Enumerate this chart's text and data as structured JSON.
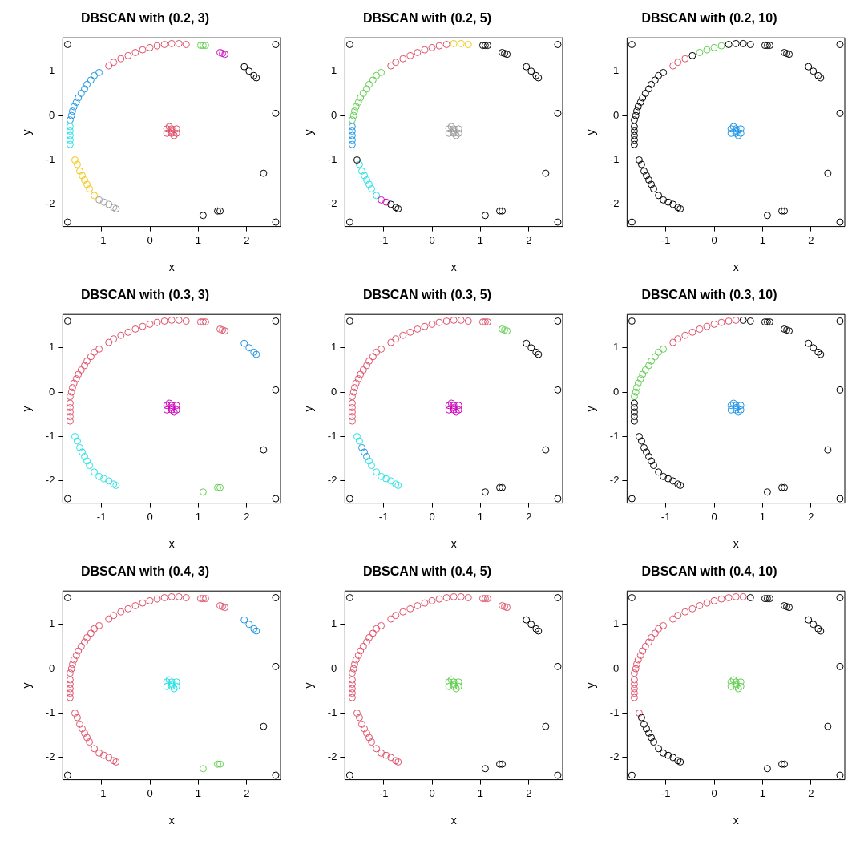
{
  "chart_data": [
    {
      "type": "scatter",
      "title": "DBSCAN with (0.2, 3)",
      "xlabel": "x",
      "ylabel": "y",
      "xlim": [
        -1.8,
        2.7
      ],
      "ylim": [
        -2.5,
        1.75
      ],
      "xticks": [
        -1,
        0,
        1,
        2
      ],
      "yticks": [
        -2,
        -1,
        0,
        1
      ],
      "marker": "circle",
      "series": [
        {
          "color": "#000000",
          "x": [
            1.95,
            2.05,
            2.15,
            2.2,
            -1.7,
            2.6,
            -1.7,
            2.6,
            2.6,
            2.35,
            1.1,
            1.4,
            1.45
          ],
          "values": [
            1.1,
            1.0,
            0.9,
            0.85,
            1.6,
            1.6,
            -2.4,
            -2.4,
            0.05,
            -1.3,
            -2.25,
            -2.15,
            -2.15
          ]
        },
        {
          "color": "#df536b",
          "x": [
            -0.85,
            -0.75,
            -0.6,
            -0.45,
            -0.3,
            -0.15,
            0.0,
            0.15,
            0.3,
            0.45,
            0.6,
            0.75,
            0.35,
            0.45,
            0.55,
            0.35,
            0.45,
            0.55,
            0.4,
            0.5,
            0.45
          ],
          "values": [
            1.12,
            1.2,
            1.28,
            1.35,
            1.42,
            1.48,
            1.53,
            1.57,
            1.6,
            1.62,
            1.62,
            1.6,
            -0.3,
            -0.3,
            -0.3,
            -0.4,
            -0.4,
            -0.4,
            -0.25,
            -0.45,
            -0.35
          ]
        },
        {
          "color": "#61d04f",
          "x": [
            1.05,
            1.1,
            1.15
          ],
          "values": [
            1.58,
            1.58,
            1.58
          ]
        },
        {
          "color": "#cd0bbc",
          "x": [
            1.45,
            1.5,
            1.55
          ],
          "values": [
            1.42,
            1.4,
            1.38
          ]
        },
        {
          "color": "#2297e6",
          "x": [
            -1.65,
            -1.62,
            -1.6,
            -1.57,
            -1.52,
            -1.48,
            -1.42,
            -1.35,
            -1.3,
            -1.22,
            -1.15,
            -1.05
          ],
          "values": [
            -0.1,
            0.0,
            0.1,
            0.2,
            0.3,
            0.4,
            0.5,
            0.6,
            0.7,
            0.8,
            0.9,
            0.97
          ]
        },
        {
          "color": "#28e2e5",
          "x": [
            -1.65,
            -1.65,
            -1.65,
            -1.65,
            -1.65
          ],
          "values": [
            -0.65,
            -0.55,
            -0.45,
            -0.35,
            -0.25
          ]
        },
        {
          "color": "#f5c710",
          "x": [
            -1.15,
            -1.25,
            -1.3,
            -1.35,
            -1.4,
            -1.45,
            -1.5,
            -1.55
          ],
          "values": [
            -1.8,
            -1.65,
            -1.55,
            -1.45,
            -1.35,
            -1.25,
            -1.1,
            -1.0
          ]
        },
        {
          "color": "#9e9e9e",
          "x": [
            -0.7,
            -0.75,
            -0.85,
            -0.95,
            -1.05
          ],
          "values": [
            -2.1,
            -2.07,
            -2.0,
            -1.95,
            -1.9
          ]
        }
      ]
    },
    {
      "type": "scatter",
      "title": "DBSCAN with (0.2, 5)",
      "xlabel": "x",
      "ylabel": "y",
      "xlim": [
        -1.8,
        2.7
      ],
      "ylim": [
        -2.5,
        1.75
      ],
      "xticks": [
        -1,
        0,
        1,
        2
      ],
      "yticks": [
        -2,
        -1,
        0,
        1
      ],
      "marker": "circle",
      "series": [
        {
          "color": "#000000",
          "x": [
            -0.7,
            -0.75,
            -0.85,
            -1.55,
            1.05,
            1.1,
            1.15,
            1.45,
            1.5,
            1.55,
            1.95,
            2.05,
            2.15,
            2.2,
            -1.7,
            2.6,
            -1.7,
            2.6,
            2.6,
            2.35,
            1.1,
            1.4,
            1.45
          ],
          "values": [
            -2.1,
            -2.07,
            -2.0,
            -1.0,
            1.58,
            1.58,
            1.58,
            1.42,
            1.4,
            1.38,
            1.1,
            1.0,
            0.9,
            0.85,
            1.6,
            1.6,
            -2.4,
            -2.4,
            0.05,
            -1.3,
            -2.25,
            -2.15,
            -2.15
          ]
        },
        {
          "color": "#cd0bbc",
          "x": [
            -0.95,
            -1.05
          ],
          "values": [
            -1.95,
            -1.9
          ]
        },
        {
          "color": "#28e2e5",
          "x": [
            -1.15,
            -1.25,
            -1.3,
            -1.35,
            -1.4,
            -1.45,
            -1.5
          ],
          "values": [
            -1.8,
            -1.65,
            -1.55,
            -1.45,
            -1.35,
            -1.25,
            -1.1
          ]
        },
        {
          "color": "#2297e6",
          "x": [
            -1.65,
            -1.65,
            -1.65,
            -1.65,
            -1.65
          ],
          "values": [
            -0.65,
            -0.55,
            -0.45,
            -0.35,
            -0.25
          ]
        },
        {
          "color": "#61d04f",
          "x": [
            -1.65,
            -1.62,
            -1.6,
            -1.57,
            -1.52,
            -1.48,
            -1.42,
            -1.35,
            -1.3,
            -1.22,
            -1.15,
            -1.05
          ],
          "values": [
            -0.1,
            0.0,
            0.1,
            0.2,
            0.3,
            0.4,
            0.5,
            0.6,
            0.7,
            0.8,
            0.9,
            0.97
          ]
        },
        {
          "color": "#df536b",
          "x": [
            -0.85,
            -0.75,
            -0.6,
            -0.45,
            -0.3,
            -0.15,
            0.0,
            0.15,
            0.3
          ],
          "values": [
            1.12,
            1.2,
            1.28,
            1.35,
            1.42,
            1.48,
            1.53,
            1.57,
            1.6
          ]
        },
        {
          "color": "#f5c710",
          "x": [
            0.45,
            0.6,
            0.75
          ],
          "values": [
            1.62,
            1.62,
            1.6
          ]
        },
        {
          "color": "#9e9e9e",
          "x": [
            0.35,
            0.45,
            0.55,
            0.35,
            0.45,
            0.55,
            0.4,
            0.5,
            0.45
          ],
          "values": [
            -0.3,
            -0.3,
            -0.3,
            -0.4,
            -0.4,
            -0.4,
            -0.25,
            -0.45,
            -0.35
          ]
        }
      ]
    },
    {
      "type": "scatter",
      "title": "DBSCAN with (0.2, 10)",
      "xlabel": "x",
      "ylabel": "y",
      "xlim": [
        -1.8,
        2.7
      ],
      "ylim": [
        -2.5,
        1.75
      ],
      "xticks": [
        -1,
        0,
        1,
        2
      ],
      "yticks": [
        -2,
        -1,
        0,
        1
      ],
      "marker": "circle",
      "series": [
        {
          "color": "#000000",
          "x": [
            -0.7,
            -0.75,
            -0.85,
            -0.95,
            -1.05,
            -1.15,
            -1.25,
            -1.3,
            -1.35,
            -1.4,
            -1.45,
            -1.5,
            -1.55,
            -1.65,
            -1.65,
            -1.65,
            -1.65,
            -1.65,
            -1.65,
            -1.62,
            -1.6,
            -1.57,
            -1.52,
            -1.48,
            -1.42,
            -1.35,
            -1.3,
            -1.22,
            -1.15,
            -1.05,
            -0.45,
            0.3,
            0.45,
            0.6,
            0.75,
            1.05,
            1.1,
            1.15,
            1.45,
            1.5,
            1.55,
            1.95,
            2.05,
            2.15,
            2.2,
            -1.7,
            2.6,
            -1.7,
            2.6,
            2.6,
            2.35,
            1.1,
            1.4,
            1.45
          ],
          "values": [
            -2.1,
            -2.07,
            -2.0,
            -1.95,
            -1.9,
            -1.8,
            -1.65,
            -1.55,
            -1.45,
            -1.35,
            -1.25,
            -1.1,
            -1.0,
            -0.65,
            -0.55,
            -0.45,
            -0.35,
            -0.25,
            -0.1,
            0.0,
            0.1,
            0.2,
            0.3,
            0.4,
            0.5,
            0.6,
            0.7,
            0.8,
            0.9,
            0.97,
            1.35,
            1.6,
            1.62,
            1.62,
            1.6,
            1.58,
            1.58,
            1.58,
            1.42,
            1.4,
            1.38,
            1.1,
            1.0,
            0.9,
            0.85,
            1.6,
            1.6,
            -2.4,
            -2.4,
            0.05,
            -1.3,
            -2.25,
            -2.15,
            -2.15
          ]
        },
        {
          "color": "#df536b",
          "x": [
            -0.85,
            -0.75,
            -0.6
          ],
          "values": [
            1.12,
            1.2,
            1.28
          ]
        },
        {
          "color": "#61d04f",
          "x": [
            -0.3,
            -0.15,
            0.0,
            0.15
          ],
          "values": [
            1.42,
            1.48,
            1.53,
            1.57
          ]
        },
        {
          "color": "#2297e6",
          "x": [
            0.35,
            0.45,
            0.55,
            0.35,
            0.45,
            0.55,
            0.4,
            0.5,
            0.45
          ],
          "values": [
            -0.3,
            -0.3,
            -0.3,
            -0.4,
            -0.4,
            -0.4,
            -0.25,
            -0.45,
            -0.35
          ]
        }
      ]
    },
    {
      "type": "scatter",
      "title": "DBSCAN with (0.3, 3)",
      "xlabel": "x",
      "ylabel": "y",
      "xlim": [
        -1.8,
        2.7
      ],
      "ylim": [
        -2.5,
        1.75
      ],
      "xticks": [
        -1,
        0,
        1,
        2
      ],
      "yticks": [
        -2,
        -1,
        0,
        1
      ],
      "marker": "circle",
      "series": [
        {
          "color": "#000000",
          "x": [
            -1.7,
            2.6,
            -1.7,
            2.6,
            2.6,
            2.35
          ],
          "values": [
            1.6,
            1.6,
            -2.4,
            -2.4,
            0.05,
            -1.3
          ]
        },
        {
          "color": "#df536b",
          "x": [
            -1.65,
            -1.65,
            -1.65,
            -1.65,
            -1.65,
            -1.65,
            -1.62,
            -1.6,
            -1.57,
            -1.52,
            -1.48,
            -1.42,
            -1.35,
            -1.3,
            -1.22,
            -1.15,
            -1.05,
            -0.85,
            -0.75,
            -0.6,
            -0.45,
            -0.3,
            -0.15,
            0.0,
            0.15,
            0.3,
            0.45,
            0.6,
            0.75,
            1.05,
            1.1,
            1.15,
            1.45,
            1.5,
            1.55
          ],
          "values": [
            -0.65,
            -0.55,
            -0.45,
            -0.35,
            -0.25,
            -0.1,
            0.0,
            0.1,
            0.2,
            0.3,
            0.4,
            0.5,
            0.6,
            0.7,
            0.8,
            0.9,
            0.97,
            1.12,
            1.2,
            1.28,
            1.35,
            1.42,
            1.48,
            1.53,
            1.57,
            1.6,
            1.62,
            1.62,
            1.6,
            1.58,
            1.58,
            1.58,
            1.42,
            1.4,
            1.38
          ]
        },
        {
          "color": "#2297e6",
          "x": [
            1.95,
            2.05,
            2.15,
            2.2
          ],
          "values": [
            1.1,
            1.0,
            0.9,
            0.85
          ]
        },
        {
          "color": "#28e2e5",
          "x": [
            -0.7,
            -0.75,
            -0.85,
            -0.95,
            -1.05,
            -1.15,
            -1.25,
            -1.3,
            -1.35,
            -1.4,
            -1.45,
            -1.5,
            -1.55
          ],
          "values": [
            -2.1,
            -2.07,
            -2.0,
            -1.95,
            -1.9,
            -1.8,
            -1.65,
            -1.55,
            -1.45,
            -1.35,
            -1.25,
            -1.1,
            -1.0
          ]
        },
        {
          "color": "#61d04f",
          "x": [
            1.1,
            1.4,
            1.45
          ],
          "values": [
            -2.25,
            -2.15,
            -2.15
          ]
        },
        {
          "color": "#cd0bbc",
          "x": [
            0.35,
            0.45,
            0.55,
            0.35,
            0.45,
            0.55,
            0.4,
            0.5,
            0.45
          ],
          "values": [
            -0.3,
            -0.3,
            -0.3,
            -0.4,
            -0.4,
            -0.4,
            -0.25,
            -0.45,
            -0.35
          ]
        }
      ]
    },
    {
      "type": "scatter",
      "title": "DBSCAN with (0.3, 5)",
      "xlabel": "x",
      "ylabel": "y",
      "xlim": [
        -1.8,
        2.7
      ],
      "ylim": [
        -2.5,
        1.75
      ],
      "xticks": [
        -1,
        0,
        1,
        2
      ],
      "yticks": [
        -2,
        -1,
        0,
        1
      ],
      "marker": "circle",
      "series": [
        {
          "color": "#000000",
          "x": [
            1.95,
            2.05,
            2.15,
            2.2,
            -1.7,
            2.6,
            -1.7,
            2.6,
            2.6,
            2.35,
            1.1,
            1.4,
            1.45
          ],
          "values": [
            1.1,
            1.0,
            0.9,
            0.85,
            1.6,
            1.6,
            -2.4,
            -2.4,
            0.05,
            -1.3,
            -2.25,
            -2.15,
            -2.15
          ]
        },
        {
          "color": "#df536b",
          "x": [
            -1.65,
            -1.65,
            -1.65,
            -1.65,
            -1.65,
            -1.65,
            -1.62,
            -1.6,
            -1.57,
            -1.52,
            -1.48,
            -1.42,
            -1.35,
            -1.3,
            -1.22,
            -1.15,
            -1.05,
            -0.85,
            -0.75,
            -0.6,
            -0.45,
            -0.3,
            -0.15,
            0.0,
            0.15,
            0.3,
            0.45,
            0.6,
            0.75,
            1.05,
            1.1,
            1.15
          ],
          "values": [
            -0.65,
            -0.55,
            -0.45,
            -0.35,
            -0.25,
            -0.1,
            0.0,
            0.1,
            0.2,
            0.3,
            0.4,
            0.5,
            0.6,
            0.7,
            0.8,
            0.9,
            0.97,
            1.12,
            1.2,
            1.28,
            1.35,
            1.42,
            1.48,
            1.53,
            1.57,
            1.6,
            1.62,
            1.62,
            1.6,
            1.58,
            1.58,
            1.58
          ]
        },
        {
          "color": "#61d04f",
          "x": [
            1.45,
            1.5,
            1.55
          ],
          "values": [
            1.42,
            1.4,
            1.38
          ]
        },
        {
          "color": "#28e2e5",
          "x": [
            -0.7,
            -0.75,
            -0.85,
            -0.95,
            -1.05,
            -1.15,
            -1.25,
            -1.3,
            -1.5,
            -1.55
          ],
          "values": [
            -2.1,
            -2.07,
            -2.0,
            -1.95,
            -1.9,
            -1.8,
            -1.65,
            -1.55,
            -1.1,
            -1.0
          ]
        },
        {
          "color": "#2297e6",
          "x": [
            -1.35,
            -1.4,
            -1.45
          ],
          "values": [
            -1.45,
            -1.35,
            -1.25
          ]
        },
        {
          "color": "#cd0bbc",
          "x": [
            0.35,
            0.45,
            0.55,
            0.35,
            0.45,
            0.55,
            0.4,
            0.5,
            0.45
          ],
          "values": [
            -0.3,
            -0.3,
            -0.3,
            -0.4,
            -0.4,
            -0.4,
            -0.25,
            -0.45,
            -0.35
          ]
        }
      ]
    },
    {
      "type": "scatter",
      "title": "DBSCAN with (0.3, 10)",
      "xlabel": "x",
      "ylabel": "y",
      "xlim": [
        -1.8,
        2.7
      ],
      "ylim": [
        -2.5,
        1.75
      ],
      "xticks": [
        -1,
        0,
        1,
        2
      ],
      "yticks": [
        -2,
        -1,
        0,
        1
      ],
      "marker": "circle",
      "series": [
        {
          "color": "#000000",
          "x": [
            -0.7,
            -0.75,
            -0.85,
            -0.95,
            -1.05,
            -1.15,
            -1.25,
            -1.3,
            -1.35,
            -1.4,
            -1.45,
            -1.5,
            -1.55,
            -1.65,
            -1.65,
            -1.65,
            -1.65,
            -1.65,
            0.6,
            0.75,
            1.05,
            1.1,
            1.15,
            1.45,
            1.5,
            1.55,
            1.95,
            2.05,
            2.15,
            2.2,
            -1.7,
            2.6,
            -1.7,
            2.6,
            2.6,
            2.35,
            1.1,
            1.4,
            1.45
          ],
          "values": [
            -2.1,
            -2.07,
            -2.0,
            -1.95,
            -1.9,
            -1.8,
            -1.65,
            -1.55,
            -1.45,
            -1.35,
            -1.25,
            -1.1,
            -1.0,
            -0.65,
            -0.55,
            -0.45,
            -0.35,
            -0.25,
            1.62,
            1.6,
            1.58,
            1.58,
            1.58,
            1.42,
            1.4,
            1.38,
            1.1,
            1.0,
            0.9,
            0.85,
            1.6,
            1.6,
            -2.4,
            -2.4,
            0.05,
            -1.3,
            -2.25,
            -2.15,
            -2.15
          ]
        },
        {
          "color": "#61d04f",
          "x": [
            -1.65,
            -1.62,
            -1.6,
            -1.57,
            -1.52,
            -1.48,
            -1.42,
            -1.35,
            -1.3,
            -1.22,
            -1.15,
            -1.05
          ],
          "values": [
            -0.1,
            0.0,
            0.1,
            0.2,
            0.3,
            0.4,
            0.5,
            0.6,
            0.7,
            0.8,
            0.9,
            0.97
          ]
        },
        {
          "color": "#df536b",
          "x": [
            -0.85,
            -0.75,
            -0.6,
            -0.45,
            -0.3,
            -0.15,
            0.0,
            0.15,
            0.3,
            0.45
          ],
          "values": [
            1.12,
            1.2,
            1.28,
            1.35,
            1.42,
            1.48,
            1.53,
            1.57,
            1.6,
            1.62
          ]
        },
        {
          "color": "#2297e6",
          "x": [
            0.35,
            0.45,
            0.55,
            0.35,
            0.45,
            0.55,
            0.4,
            0.5,
            0.45
          ],
          "values": [
            -0.3,
            -0.3,
            -0.3,
            -0.4,
            -0.4,
            -0.4,
            -0.25,
            -0.45,
            -0.35
          ]
        }
      ]
    },
    {
      "type": "scatter",
      "title": "DBSCAN with (0.4, 3)",
      "xlabel": "x",
      "ylabel": "y",
      "xlim": [
        -1.8,
        2.7
      ],
      "ylim": [
        -2.5,
        1.75
      ],
      "xticks": [
        -1,
        0,
        1,
        2
      ],
      "yticks": [
        -2,
        -1,
        0,
        1
      ],
      "marker": "circle",
      "series": [
        {
          "color": "#000000",
          "x": [
            -1.7,
            2.6,
            -1.7,
            2.6,
            2.6,
            2.35
          ],
          "values": [
            1.6,
            1.6,
            -2.4,
            -2.4,
            0.05,
            -1.3
          ]
        },
        {
          "color": "#df536b",
          "x": [
            -0.7,
            -0.75,
            -0.85,
            -0.95,
            -1.05,
            -1.15,
            -1.25,
            -1.3,
            -1.35,
            -1.4,
            -1.45,
            -1.5,
            -1.55,
            -1.65,
            -1.65,
            -1.65,
            -1.65,
            -1.65,
            -1.65,
            -1.62,
            -1.6,
            -1.57,
            -1.52,
            -1.48,
            -1.42,
            -1.35,
            -1.3,
            -1.22,
            -1.15,
            -1.05,
            -0.85,
            -0.75,
            -0.6,
            -0.45,
            -0.3,
            -0.15,
            0.0,
            0.15,
            0.3,
            0.45,
            0.6,
            0.75,
            1.05,
            1.1,
            1.15,
            1.45,
            1.5,
            1.55
          ],
          "values": [
            -2.1,
            -2.07,
            -2.0,
            -1.95,
            -1.9,
            -1.8,
            -1.65,
            -1.55,
            -1.45,
            -1.35,
            -1.25,
            -1.1,
            -1.0,
            -0.65,
            -0.55,
            -0.45,
            -0.35,
            -0.25,
            -0.1,
            0.0,
            0.1,
            0.2,
            0.3,
            0.4,
            0.5,
            0.6,
            0.7,
            0.8,
            0.9,
            0.97,
            1.12,
            1.2,
            1.28,
            1.35,
            1.42,
            1.48,
            1.53,
            1.57,
            1.6,
            1.62,
            1.62,
            1.6,
            1.58,
            1.58,
            1.58,
            1.42,
            1.4,
            1.38
          ]
        },
        {
          "color": "#2297e6",
          "x": [
            1.95,
            2.05,
            2.15,
            2.2
          ],
          "values": [
            1.1,
            1.0,
            0.9,
            0.85
          ]
        },
        {
          "color": "#61d04f",
          "x": [
            1.1,
            1.4,
            1.45
          ],
          "values": [
            -2.25,
            -2.15,
            -2.15
          ]
        },
        {
          "color": "#28e2e5",
          "x": [
            0.35,
            0.45,
            0.55,
            0.35,
            0.45,
            0.55,
            0.4,
            0.5,
            0.45
          ],
          "values": [
            -0.3,
            -0.3,
            -0.3,
            -0.4,
            -0.4,
            -0.4,
            -0.25,
            -0.45,
            -0.35
          ]
        }
      ]
    },
    {
      "type": "scatter",
      "title": "DBSCAN with (0.4, 5)",
      "xlabel": "x",
      "ylabel": "y",
      "xlim": [
        -1.8,
        2.7
      ],
      "ylim": [
        -2.5,
        1.75
      ],
      "xticks": [
        -1,
        0,
        1,
        2
      ],
      "yticks": [
        -2,
        -1,
        0,
        1
      ],
      "marker": "circle",
      "series": [
        {
          "color": "#000000",
          "x": [
            1.95,
            2.05,
            2.15,
            2.2,
            -1.7,
            2.6,
            -1.7,
            2.6,
            2.6,
            2.35,
            1.1,
            1.4,
            1.45
          ],
          "values": [
            1.1,
            1.0,
            0.9,
            0.85,
            1.6,
            1.6,
            -2.4,
            -2.4,
            0.05,
            -1.3,
            -2.25,
            -2.15,
            -2.15
          ]
        },
        {
          "color": "#df536b",
          "x": [
            -0.7,
            -0.75,
            -0.85,
            -0.95,
            -1.05,
            -1.15,
            -1.25,
            -1.3,
            -1.35,
            -1.4,
            -1.45,
            -1.5,
            -1.55,
            -1.65,
            -1.65,
            -1.65,
            -1.65,
            -1.65,
            -1.65,
            -1.62,
            -1.6,
            -1.57,
            -1.52,
            -1.48,
            -1.42,
            -1.35,
            -1.3,
            -1.22,
            -1.15,
            -1.05,
            -0.85,
            -0.75,
            -0.6,
            -0.45,
            -0.3,
            -0.15,
            0.0,
            0.15,
            0.3,
            0.45,
            0.6,
            0.75,
            1.05,
            1.1,
            1.15,
            1.45,
            1.5,
            1.55
          ],
          "values": [
            -2.1,
            -2.07,
            -2.0,
            -1.95,
            -1.9,
            -1.8,
            -1.65,
            -1.55,
            -1.45,
            -1.35,
            -1.25,
            -1.1,
            -1.0,
            -0.65,
            -0.55,
            -0.45,
            -0.35,
            -0.25,
            -0.1,
            0.0,
            0.1,
            0.2,
            0.3,
            0.4,
            0.5,
            0.6,
            0.7,
            0.8,
            0.9,
            0.97,
            1.12,
            1.2,
            1.28,
            1.35,
            1.42,
            1.48,
            1.53,
            1.57,
            1.6,
            1.62,
            1.62,
            1.6,
            1.58,
            1.58,
            1.58,
            1.42,
            1.4,
            1.38
          ]
        },
        {
          "color": "#61d04f",
          "x": [
            0.35,
            0.45,
            0.55,
            0.35,
            0.45,
            0.55,
            0.4,
            0.5,
            0.45
          ],
          "values": [
            -0.3,
            -0.3,
            -0.3,
            -0.4,
            -0.4,
            -0.4,
            -0.25,
            -0.45,
            -0.35
          ]
        }
      ]
    },
    {
      "type": "scatter",
      "title": "DBSCAN with (0.4, 10)",
      "xlabel": "x",
      "ylabel": "y",
      "xlim": [
        -1.8,
        2.7
      ],
      "ylim": [
        -2.5,
        1.75
      ],
      "xticks": [
        -1,
        0,
        1,
        2
      ],
      "yticks": [
        -2,
        -1,
        0,
        1
      ],
      "marker": "circle",
      "series": [
        {
          "color": "#000000",
          "x": [
            -0.7,
            -0.75,
            -0.85,
            -0.95,
            -1.05,
            -1.15,
            -1.25,
            -1.3,
            -1.35,
            -1.4,
            -1.45,
            -1.5,
            0.75,
            1.05,
            1.1,
            1.15,
            1.45,
            1.5,
            1.55,
            1.95,
            2.05,
            2.15,
            2.2,
            -1.7,
            2.6,
            -1.7,
            2.6,
            2.6,
            2.35,
            1.1,
            1.4,
            1.45
          ],
          "values": [
            -2.1,
            -2.07,
            -2.0,
            -1.95,
            -1.9,
            -1.8,
            -1.65,
            -1.55,
            -1.45,
            -1.35,
            -1.25,
            -1.1,
            1.6,
            1.58,
            1.58,
            1.58,
            1.42,
            1.4,
            1.38,
            1.1,
            1.0,
            0.9,
            0.85,
            1.6,
            1.6,
            -2.4,
            -2.4,
            0.05,
            -1.3,
            -2.25,
            -2.15,
            -2.15
          ]
        },
        {
          "color": "#df536b",
          "x": [
            -1.55,
            -1.65,
            -1.65,
            -1.65,
            -1.65,
            -1.65,
            -1.65,
            -1.62,
            -1.6,
            -1.57,
            -1.52,
            -1.48,
            -1.42,
            -1.35,
            -1.3,
            -1.22,
            -1.15,
            -1.05,
            -0.85,
            -0.75,
            -0.6,
            -0.45,
            -0.3,
            -0.15,
            0.0,
            0.15,
            0.3,
            0.45,
            0.6
          ],
          "values": [
            -1.0,
            -0.65,
            -0.55,
            -0.45,
            -0.35,
            -0.25,
            -0.1,
            0.0,
            0.1,
            0.2,
            0.3,
            0.4,
            0.5,
            0.6,
            0.7,
            0.8,
            0.9,
            0.97,
            1.12,
            1.2,
            1.28,
            1.35,
            1.42,
            1.48,
            1.53,
            1.57,
            1.6,
            1.62,
            1.62
          ]
        },
        {
          "color": "#61d04f",
          "x": [
            0.35,
            0.45,
            0.55,
            0.35,
            0.45,
            0.55,
            0.4,
            0.5,
            0.45
          ],
          "values": [
            -0.3,
            -0.3,
            -0.3,
            -0.4,
            -0.4,
            -0.4,
            -0.25,
            -0.45,
            -0.35
          ]
        }
      ]
    }
  ]
}
